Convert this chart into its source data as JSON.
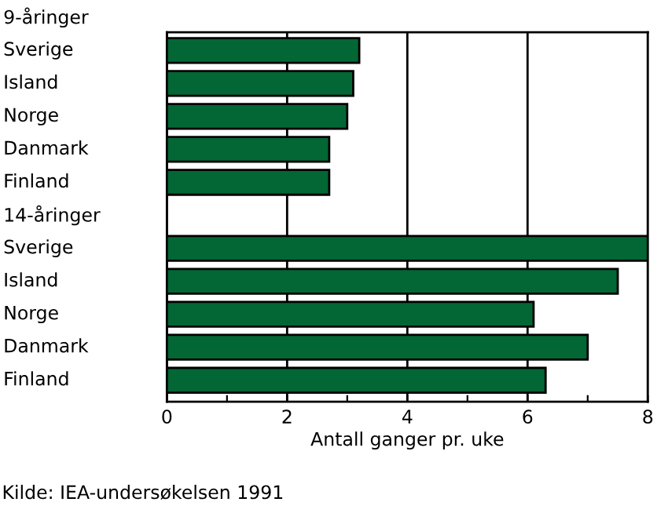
{
  "chart_data": {
    "type": "bar",
    "orientation": "horizontal",
    "categories": [
      "9-åringer",
      "Sverige",
      "Island",
      "Norge",
      "Danmark",
      "Finland",
      "14-åringer",
      "Sverige",
      "Island",
      "Norge",
      "Danmark",
      "Finland"
    ],
    "values": [
      null,
      3.2,
      3.1,
      3.0,
      2.7,
      2.7,
      null,
      8.0,
      7.5,
      6.1,
      7.0,
      6.3
    ],
    "color": "#036635",
    "xlim": [
      0,
      8
    ],
    "xticks": [
      0,
      {
        "value": 1,
        "label": null
      },
      2,
      {
        "value": 3,
        "label": null
      },
      4,
      {
        "value": 5,
        "label": null
      },
      6,
      {
        "value": 7,
        "label": null
      },
      8
    ],
    "grid": "x",
    "xlabel": "Antall ganger pr. uke",
    "annotations": [
      "Kilde: IEA-undersøkelsen 1991"
    ]
  }
}
